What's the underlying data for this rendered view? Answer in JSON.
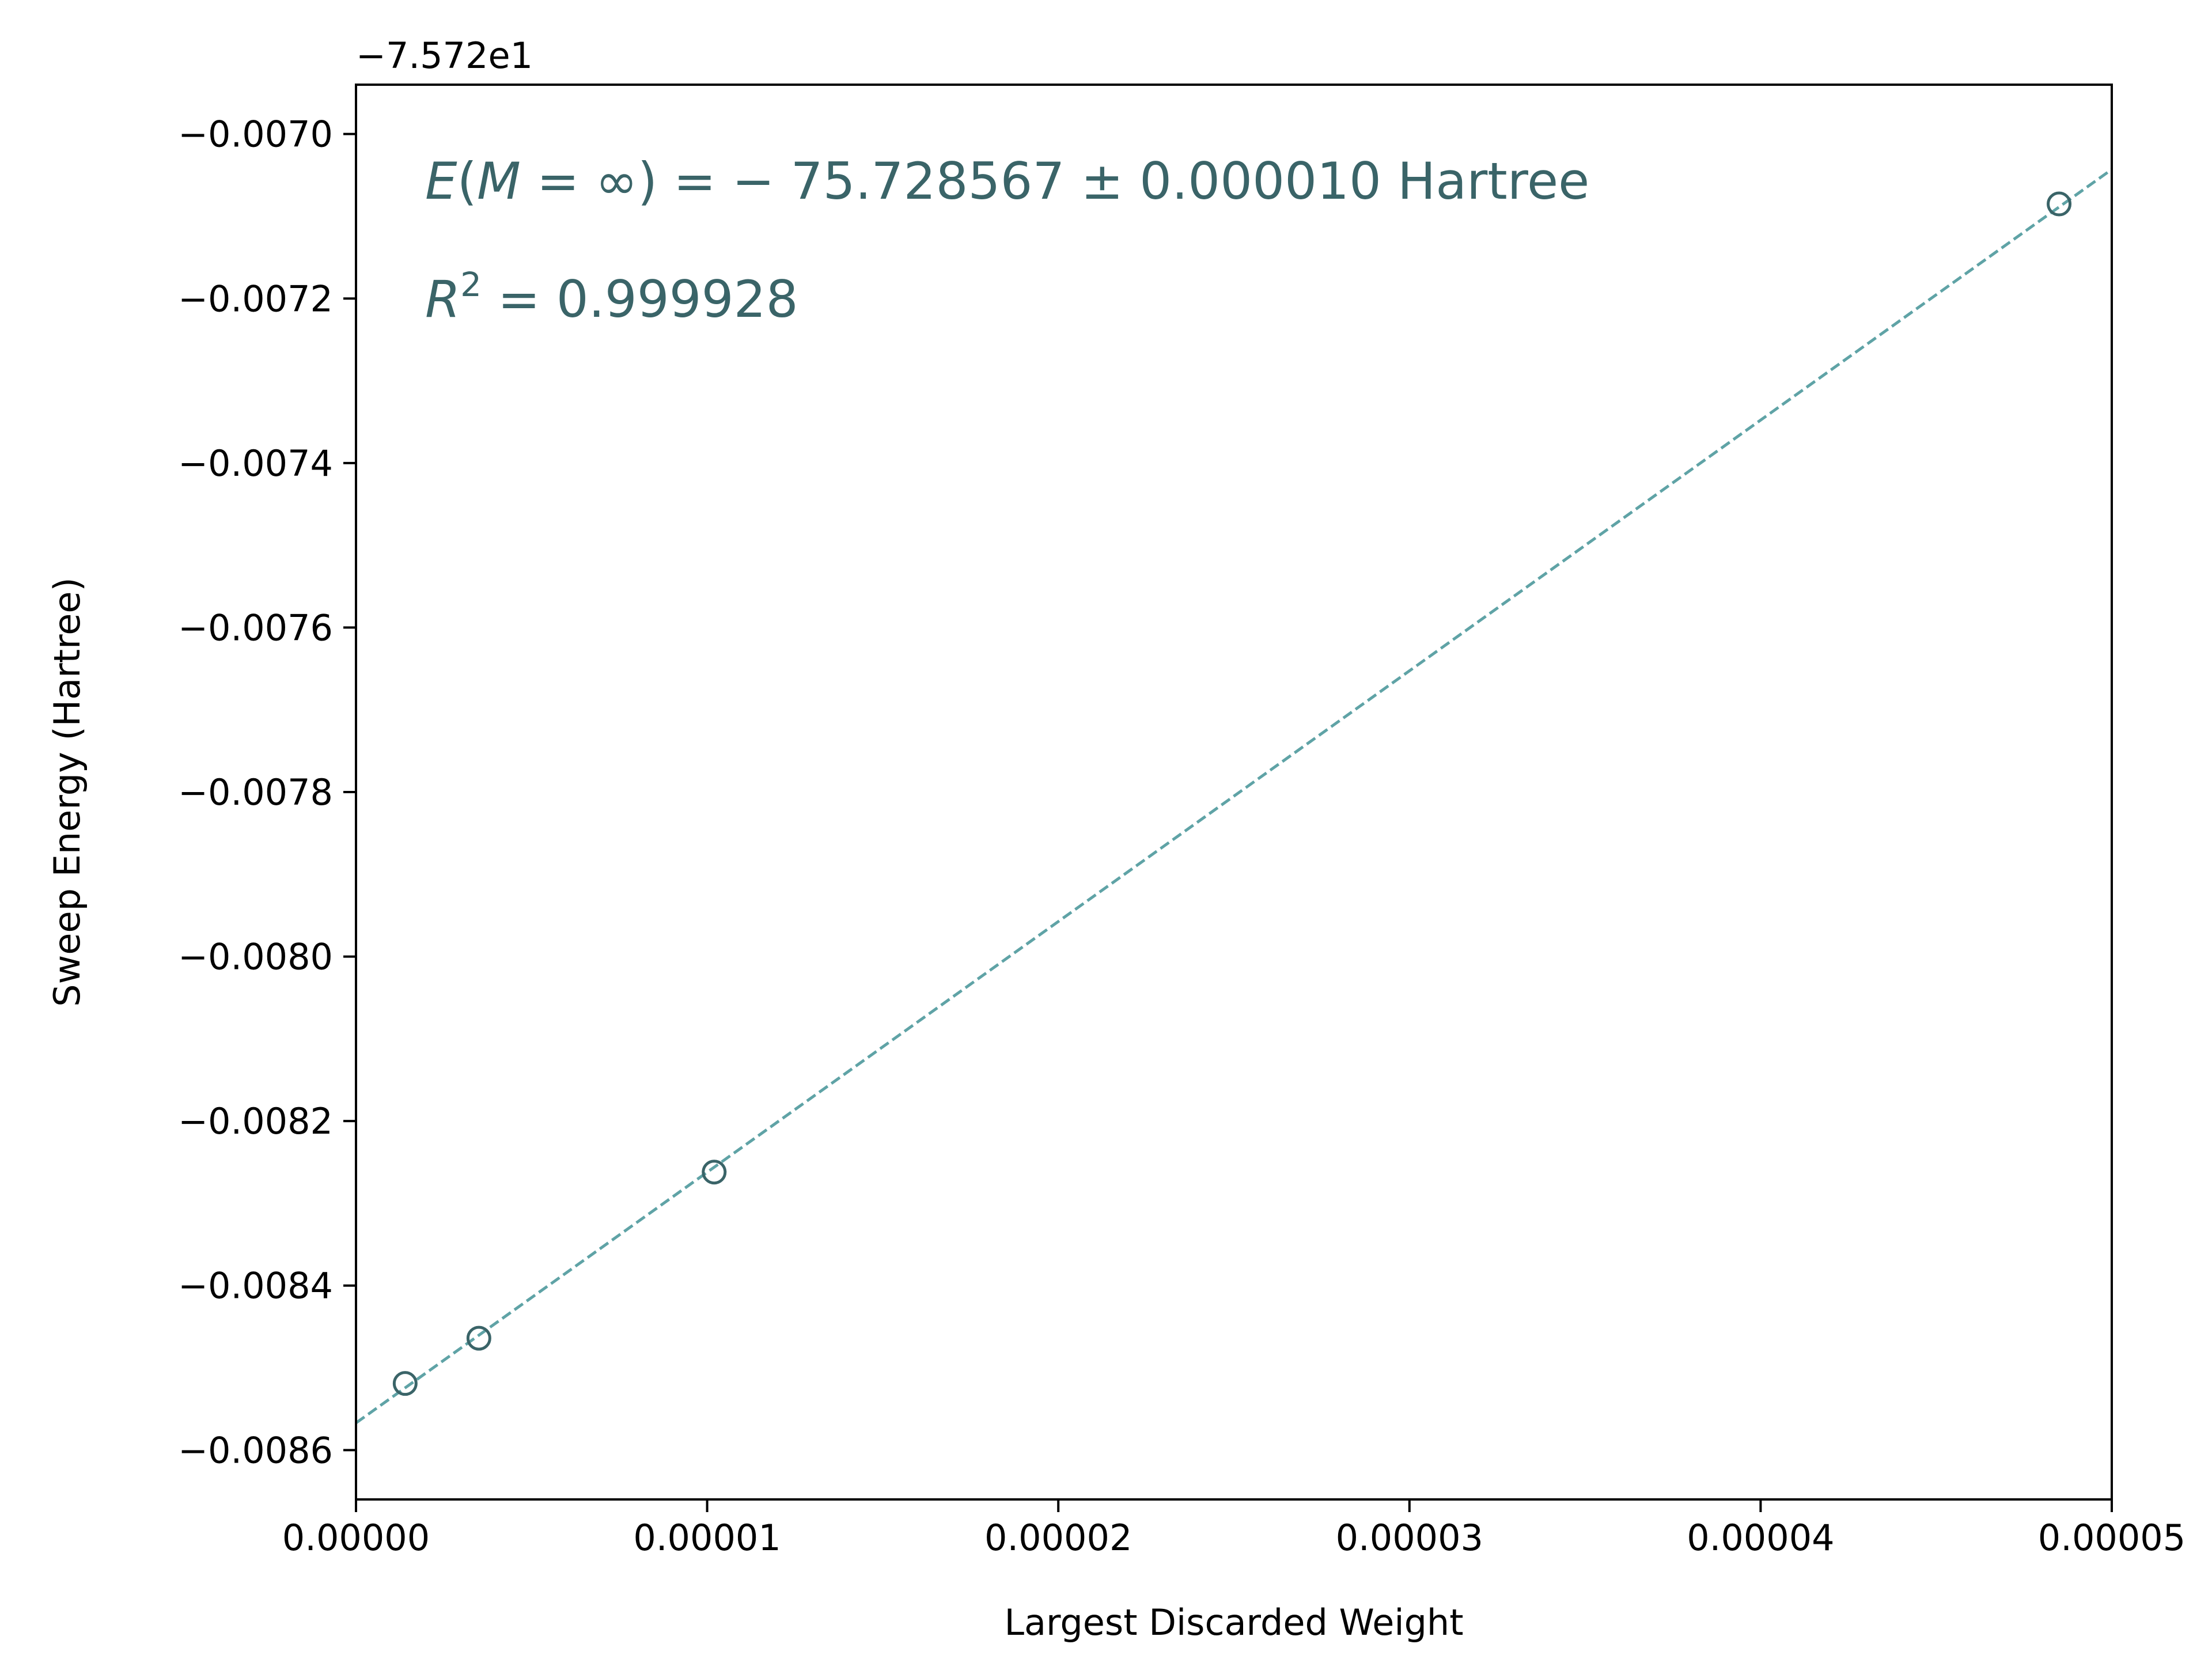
{
  "chart_data": {
    "type": "scatter",
    "title": "",
    "xlabel": "Largest Discarded Weight",
    "ylabel": "Sweep Energy (Hartree)",
    "y_offset_label": "−7.572e1",
    "y_offset": -75.72,
    "xlim": [
      0.0,
      5e-05
    ],
    "ylim": [
      -0.00866,
      -0.00694
    ],
    "grid": false,
    "legend": "none",
    "x_ticks": [
      0.0,
      1e-05,
      2e-05,
      3e-05,
      4e-05,
      5e-05
    ],
    "x_tick_labels": [
      "0.00000",
      "0.00001",
      "0.00002",
      "0.00003",
      "0.00004",
      "0.00005"
    ],
    "y_ticks": [
      -0.007,
      -0.0072,
      -0.0074,
      -0.0076,
      -0.0078,
      -0.008,
      -0.0082,
      -0.0084,
      -0.0086
    ],
    "y_tick_labels": [
      "−0.0070",
      "−0.0072",
      "−0.0074",
      "−0.0076",
      "−0.0078",
      "−0.0080",
      "−0.0082",
      "−0.0084",
      "−0.0086"
    ],
    "series": [
      {
        "kind": "points",
        "marker": "open-circle",
        "color": "#3a6468",
        "x": [
          1.4e-06,
          3.5e-06,
          1.02e-05,
          4.85e-05
        ],
        "y": [
          -0.008519,
          -0.008464,
          -0.008262,
          -0.007085
        ]
      },
      {
        "kind": "fit-line",
        "style": "dashed",
        "color": "#5fa3a6",
        "x": [
          0.0,
          5e-05
        ],
        "y": [
          -0.008567,
          -0.007043
        ]
      }
    ],
    "annotations": {
      "color": "#3a6468",
      "energy_lhs": "E",
      "energy_paren_open": "(",
      "energy_M": "M",
      "energy_eq_inf": " = ∞",
      "energy_rest": ") = − 75.728567 ± 0.000010 Hartree",
      "r2_R": "R",
      "r2_sup": "2",
      "r2_rest": " = 0.999928"
    }
  }
}
